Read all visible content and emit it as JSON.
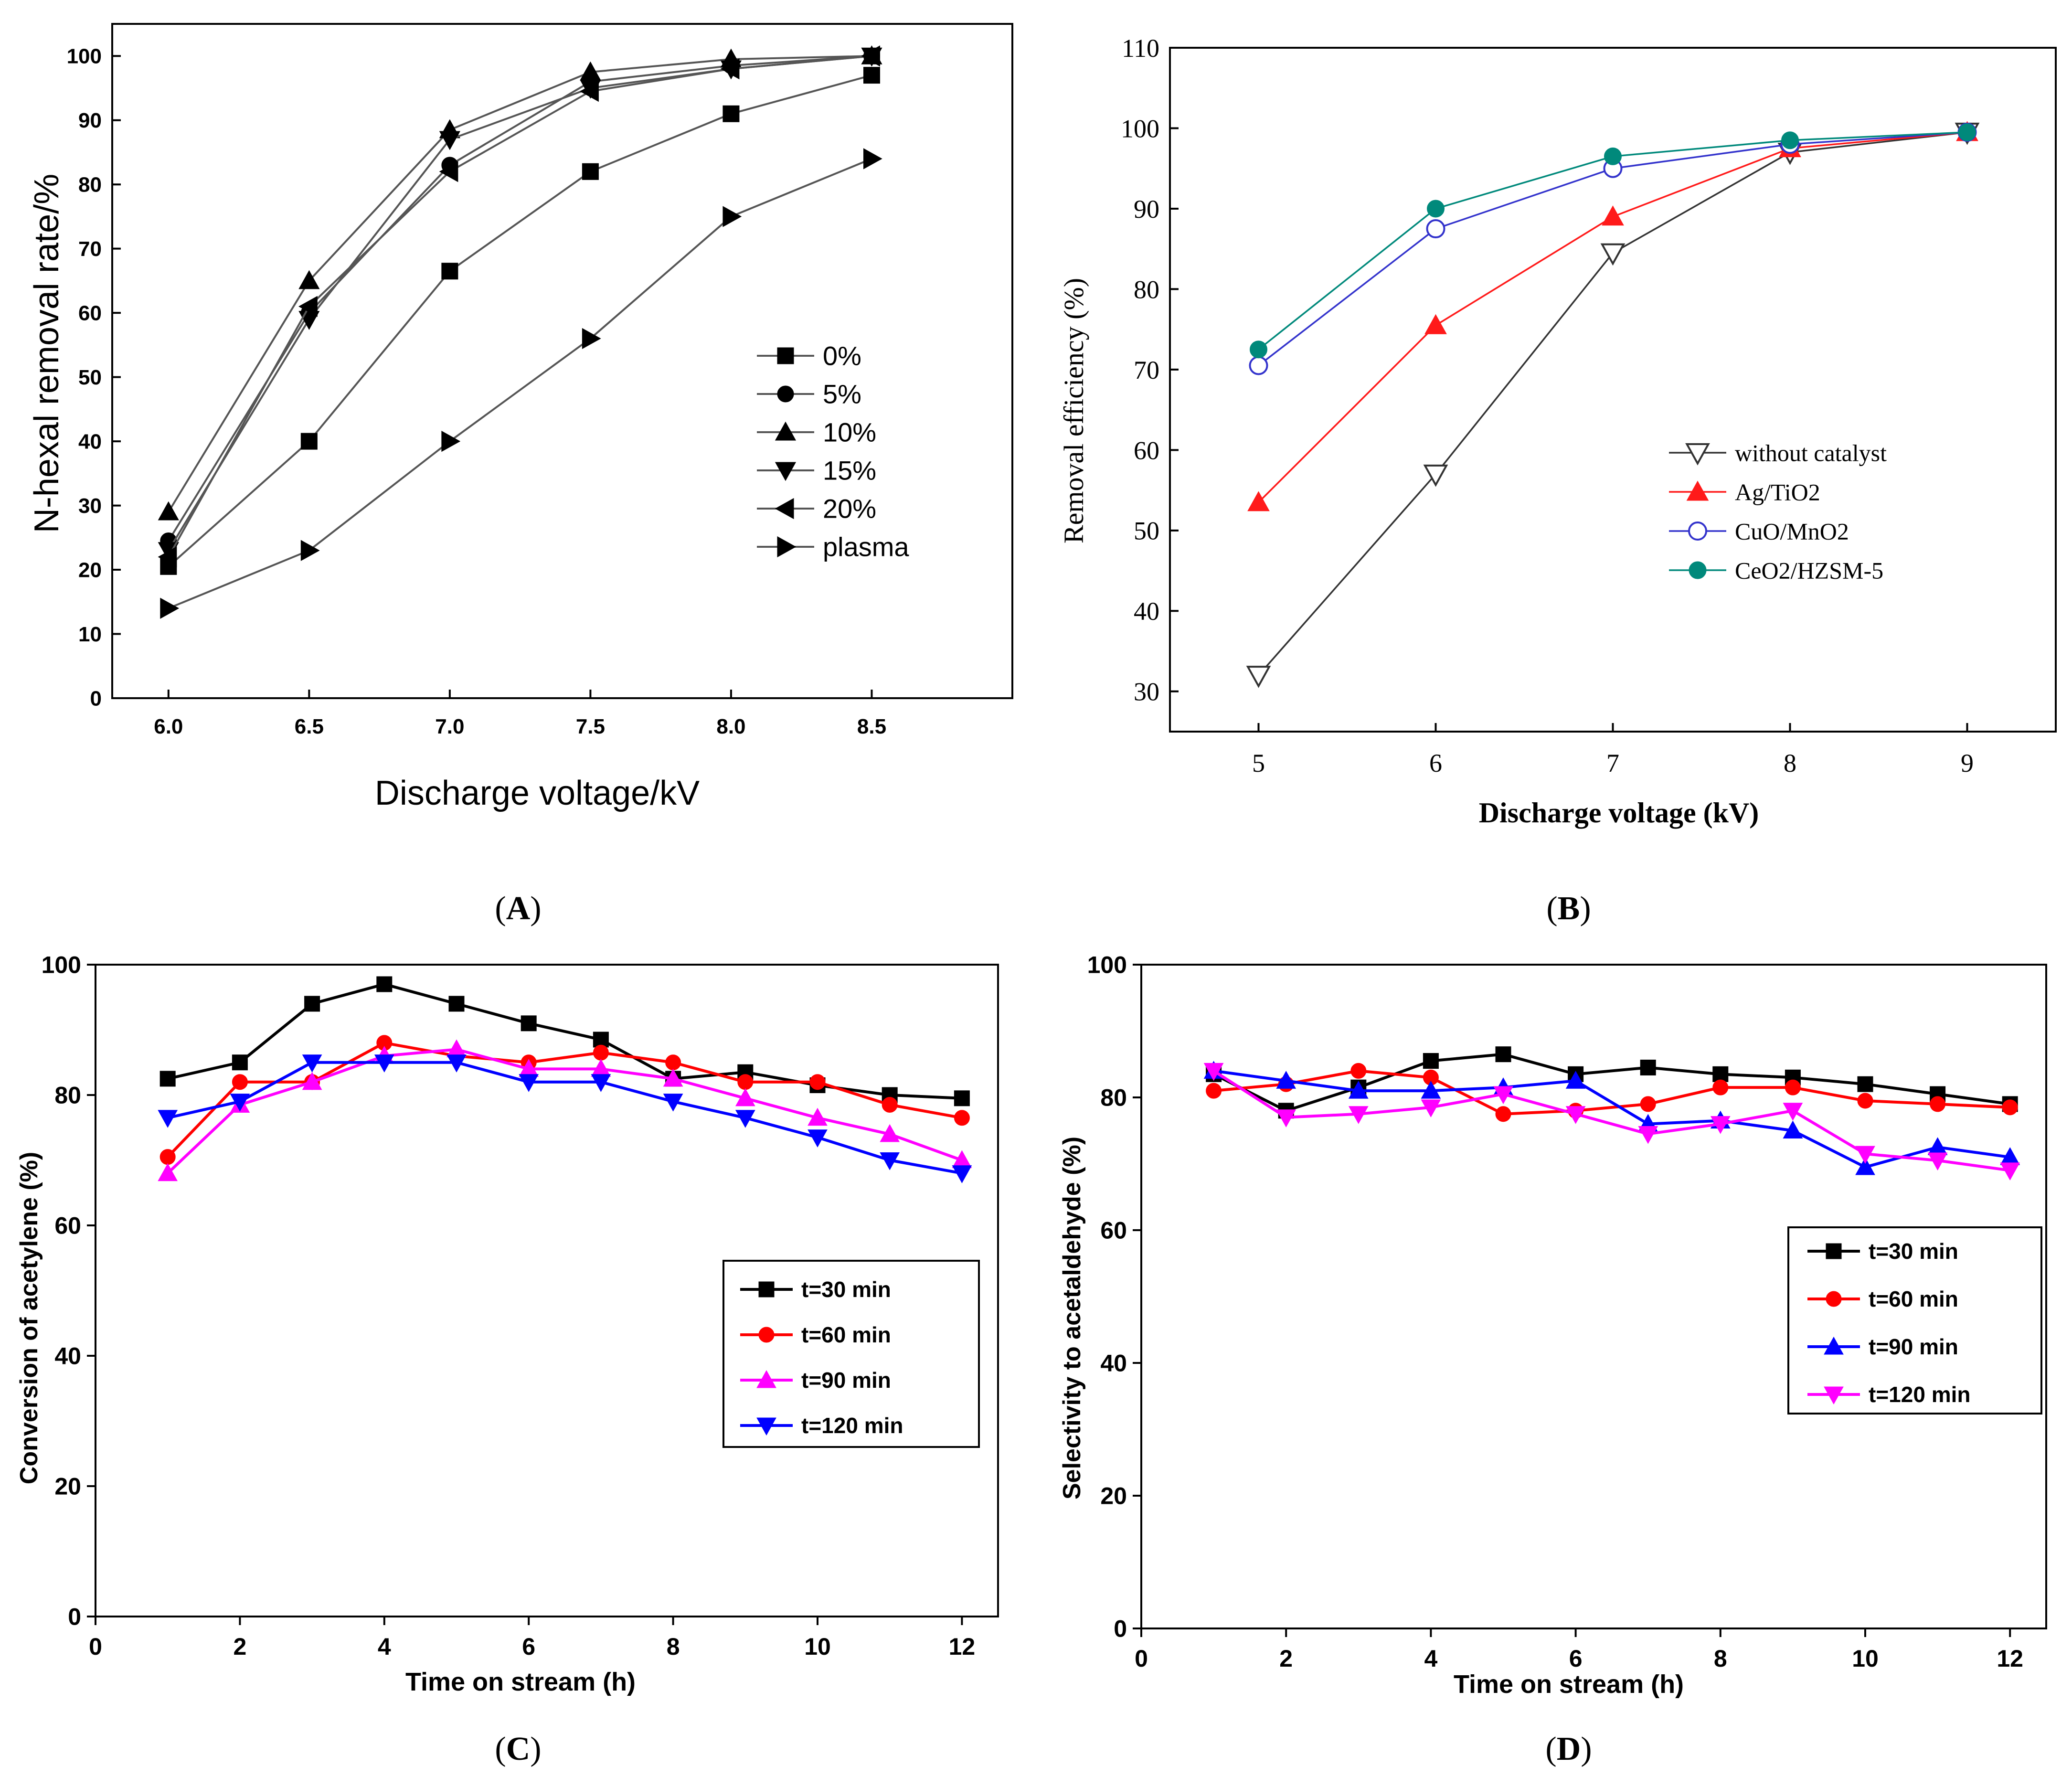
{
  "panels": [
    {
      "id": "A",
      "caption": "A",
      "chart_data": {
        "type": "line",
        "title": "",
        "xlabel": "Discharge voltage/kV",
        "ylabel": "N-hexal removal rate/%",
        "xlim": [
          5.8,
          9.0
        ],
        "ylim": [
          0,
          105
        ],
        "xticks": [
          6.0,
          6.5,
          7.0,
          7.5,
          8.0,
          8.5
        ],
        "xtick_labels": [
          "6.0",
          "6.5",
          "7.0",
          "7.5",
          "8.0",
          "8.5"
        ],
        "yticks": [
          0,
          10,
          20,
          30,
          40,
          50,
          60,
          70,
          80,
          90,
          100
        ],
        "ytick_labels": [
          "0",
          "10",
          "20",
          "30",
          "40",
          "50",
          "60",
          "70",
          "80",
          "90",
          "100"
        ],
        "legend_position": "right",
        "x": [
          6.0,
          6.5,
          7.0,
          7.5,
          8.0,
          8.5
        ],
        "series": [
          {
            "name": "0%",
            "color": "#000000",
            "marker": "square",
            "values": [
              20.5,
              40,
              66.5,
              82,
              91,
              97
            ]
          },
          {
            "name": "5%",
            "color": "#000000",
            "marker": "circle",
            "values": [
              24.5,
              60,
              83,
              96,
              98.5,
              100
            ]
          },
          {
            "name": "10%",
            "color": "#000000",
            "marker": "triangle-up",
            "values": [
              29,
              65,
              88.5,
              97.5,
              99.5,
              100
            ]
          },
          {
            "name": "15%",
            "color": "#000000",
            "marker": "triangle-down",
            "values": [
              23,
              59,
              87,
              95,
              98,
              100
            ]
          },
          {
            "name": "20%",
            "color": "#000000",
            "marker": "triangle-left",
            "values": [
              22,
              61,
              82,
              94.5,
              98,
              100
            ]
          },
          {
            "name": "plasma",
            "color": "#000000",
            "marker": "triangle-right",
            "values": [
              14,
              23,
              40,
              56,
              75,
              84
            ]
          }
        ]
      }
    },
    {
      "id": "B",
      "caption": "B",
      "chart_data": {
        "type": "line",
        "title": "",
        "xlabel": "Discharge voltage (kV)",
        "ylabel": "Removal efficiency (%)",
        "xlim": [
          4.5,
          9.5
        ],
        "ylim": [
          25,
          110
        ],
        "xticks": [
          5,
          6,
          7,
          8,
          9
        ],
        "xtick_labels": [
          "5",
          "6",
          "7",
          "8",
          "9"
        ],
        "yticks": [
          30,
          40,
          50,
          60,
          70,
          80,
          90,
          100,
          110
        ],
        "ytick_labels": [
          "30",
          "40",
          "50",
          "60",
          "70",
          "80",
          "90",
          "100",
          "110"
        ],
        "legend_position": "right",
        "x": [
          5,
          6,
          7,
          8,
          9
        ],
        "series": [
          {
            "name": "without catalyst",
            "color": "#333333",
            "marker": "open-triangle-down",
            "values": [
              32,
              57,
              84.5,
              97,
              99.5
            ]
          },
          {
            "name": "Ag/TiO2",
            "color": "#ff1a1a",
            "marker": "triangle-up",
            "values": [
              53.5,
              75.5,
              89,
              97.5,
              99.5
            ]
          },
          {
            "name": "CuO/MnO2",
            "color": "#3333cc",
            "marker": "open-circle",
            "values": [
              70.5,
              87.5,
              95,
              98,
              99.5
            ]
          },
          {
            "name": "CeO2/HZSM-5",
            "color": "#00897b",
            "marker": "circle",
            "values": [
              72.5,
              90,
              96.5,
              98.5,
              99.5
            ]
          }
        ]
      }
    },
    {
      "id": "C",
      "caption": "C",
      "chart_data": {
        "type": "line",
        "title": "",
        "xlabel": "Time on stream (h)",
        "ylabel": "Conversion of acetylene (%)",
        "xlim": [
          0,
          12.5
        ],
        "ylim": [
          0,
          100
        ],
        "xticks": [
          0,
          2,
          4,
          6,
          8,
          10,
          12
        ],
        "xtick_labels": [
          "0",
          "2",
          "4",
          "6",
          "8",
          "10",
          "12"
        ],
        "yticks": [
          0,
          20,
          40,
          60,
          80,
          100
        ],
        "ytick_labels": [
          "0",
          "20",
          "40",
          "60",
          "80",
          "100"
        ],
        "legend_position": "lower-right",
        "x": [
          1,
          2,
          3,
          4,
          5,
          6,
          7,
          8,
          9,
          10,
          11,
          12
        ],
        "series": [
          {
            "name": "t=30 min",
            "color": "#000000",
            "marker": "square",
            "values": [
              82.5,
              85,
              94,
              97,
              94,
              91,
              88.5,
              82.5,
              83.5,
              81.5,
              80,
              79.5
            ]
          },
          {
            "name": "t=60 min",
            "color": "#ff0000",
            "marker": "circle",
            "values": [
              70.5,
              82,
              82,
              88,
              86,
              85,
              86.5,
              85,
              82,
              82,
              78.5,
              76.5
            ]
          },
          {
            "name": "t=90 min",
            "color": "#ff00ff",
            "marker": "triangle-up",
            "values": [
              68,
              78.5,
              82,
              86,
              87,
              84,
              84,
              82.5,
              79.5,
              76.5,
              74,
              70
            ]
          },
          {
            "name": "t=120 min",
            "color": "#0000ff",
            "marker": "triangle-down",
            "values": [
              76.5,
              79,
              85,
              85,
              85,
              82,
              82,
              79,
              76.5,
              73.5,
              70,
              68
            ]
          }
        ]
      }
    },
    {
      "id": "D",
      "caption": "D",
      "chart_data": {
        "type": "line",
        "title": "",
        "xlabel": "Time on stream (h)",
        "ylabel": "Selectivity to acetaldehyde (%)",
        "xlim": [
          0,
          12.5
        ],
        "ylim": [
          0,
          100
        ],
        "xticks": [
          0,
          2,
          4,
          6,
          8,
          10,
          12
        ],
        "xtick_labels": [
          "0",
          "2",
          "4",
          "6",
          "8",
          "10",
          "12"
        ],
        "yticks": [
          0,
          20,
          40,
          60,
          80,
          100
        ],
        "ytick_labels": [
          "0",
          "20",
          "40",
          "60",
          "80",
          "100"
        ],
        "legend_position": "right",
        "x": [
          1,
          2,
          3,
          4,
          5,
          6,
          7,
          8,
          9,
          10,
          11,
          12
        ],
        "series": [
          {
            "name": "t=30 min",
            "color": "#000000",
            "marker": "square",
            "values": [
              83.5,
              78,
              81.5,
              85.5,
              86.5,
              83.5,
              84.5,
              83.5,
              83,
              82,
              80.5,
              79
            ]
          },
          {
            "name": "t=60 min",
            "color": "#ff0000",
            "marker": "circle",
            "values": [
              81,
              82,
              84,
              83,
              77.5,
              78,
              79,
              81.5,
              81.5,
              79.5,
              79,
              78.5
            ]
          },
          {
            "name": "t=90 min",
            "color": "#0000ff",
            "marker": "triangle-up",
            "values": [
              84,
              82.5,
              81,
              81,
              81.5,
              82.5,
              76,
              76.5,
              75,
              69.5,
              72.5,
              71
            ]
          },
          {
            "name": "t=120 min",
            "color": "#ff00ff",
            "marker": "triangle-down",
            "values": [
              84,
              77,
              77.5,
              78.5,
              80.5,
              77.5,
              74.5,
              76,
              78,
              71.5,
              70.5,
              69
            ]
          }
        ]
      }
    }
  ]
}
